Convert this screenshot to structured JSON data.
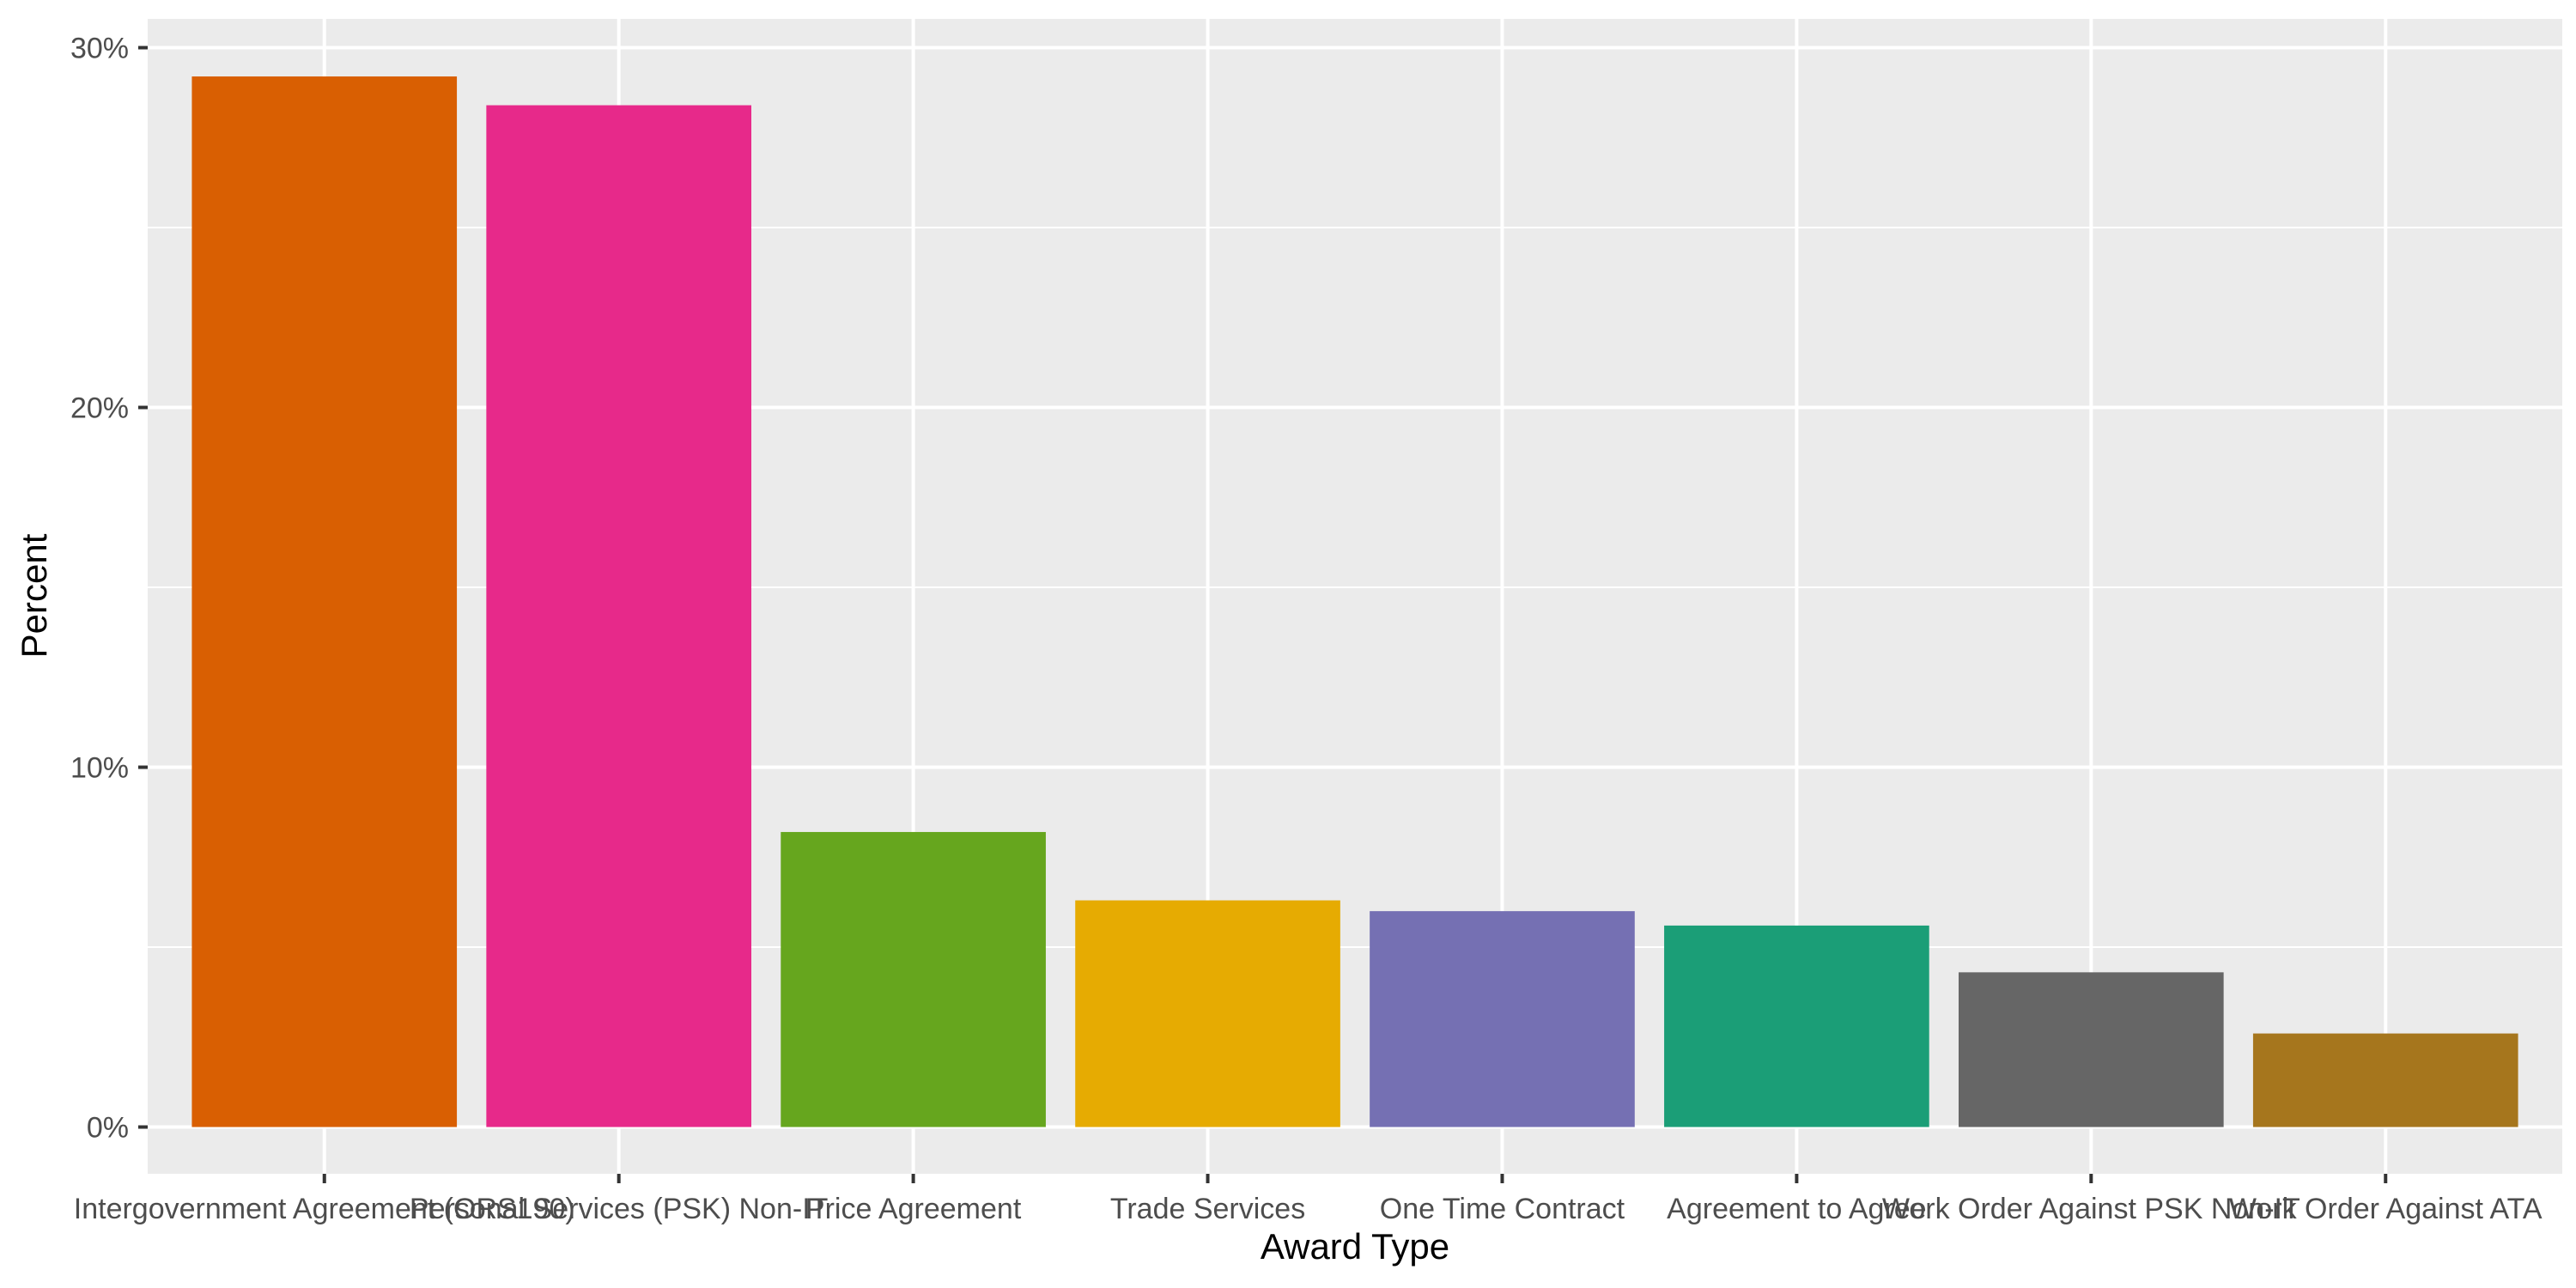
{
  "chart_data": {
    "type": "bar",
    "xlabel": "Award Type",
    "ylabel": "Percent",
    "categories": [
      "Intergovernment Agreement (ORS190)",
      "Personal Services (PSK) Non-IT",
      "Price Agreement",
      "Trade Services",
      "One Time Contract",
      "Agreement to Agree",
      "Work Order Against PSK Non-IT",
      "Work Order Against ATA"
    ],
    "values": [
      29.2,
      28.4,
      8.2,
      6.3,
      6.0,
      5.6,
      4.3,
      2.6
    ],
    "colors": [
      "#D95F02",
      "#E7298A",
      "#66A61E",
      "#E6AB02",
      "#7570B3",
      "#1B9E77",
      "#666666",
      "#A6761D"
    ],
    "ylim": [
      -1.3,
      30.8
    ],
    "y_ticks": [
      {
        "value": 0,
        "label": "0%"
      },
      {
        "value": 10,
        "label": "10%"
      },
      {
        "value": 20,
        "label": "20%"
      },
      {
        "value": 30,
        "label": "30%"
      }
    ],
    "y_minor_ticks": [
      5,
      15,
      25
    ],
    "grid": true,
    "panel_background": "#EBEBEB",
    "legend": "none"
  }
}
